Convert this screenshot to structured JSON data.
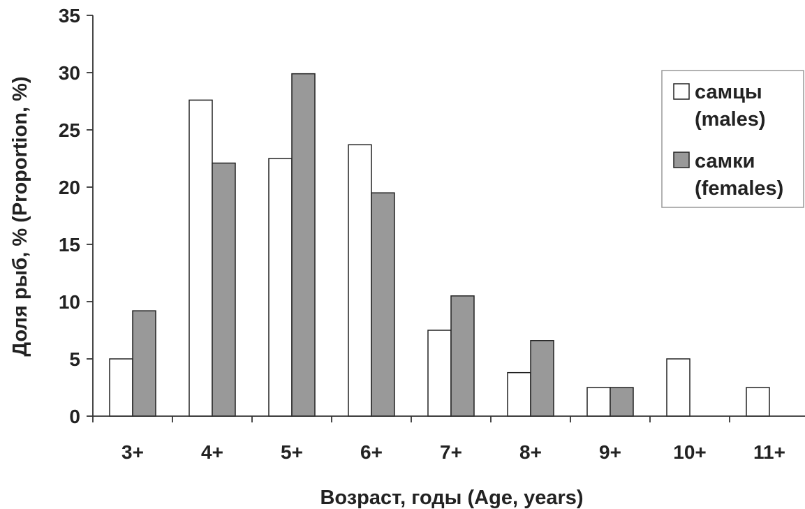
{
  "chart_data": {
    "type": "bar",
    "title": "",
    "xlabel": "Возраст, годы  (Age, years)",
    "ylabel": "Доля рыб, % (Proportion, %)",
    "ylim": [
      0,
      35
    ],
    "yticks": [
      0,
      5,
      10,
      15,
      20,
      25,
      30,
      35
    ],
    "categories": [
      "3+",
      "4+",
      "5+",
      "6+",
      "7+",
      "8+",
      "9+",
      "10+",
      "11+"
    ],
    "series": [
      {
        "name": "самцы (males)",
        "legend_lines": [
          "самцы",
          "(males)"
        ],
        "color": "#ffffff",
        "values": [
          5.0,
          27.6,
          22.5,
          23.7,
          7.5,
          3.8,
          2.5,
          5.0,
          2.5
        ]
      },
      {
        "name": "самки (females)",
        "legend_lines": [
          "самки",
          "(females)"
        ],
        "color": "#999999",
        "values": [
          9.2,
          22.1,
          29.9,
          19.5,
          10.5,
          6.6,
          2.5,
          0,
          0
        ]
      }
    ],
    "grid": false,
    "legend": "right"
  }
}
